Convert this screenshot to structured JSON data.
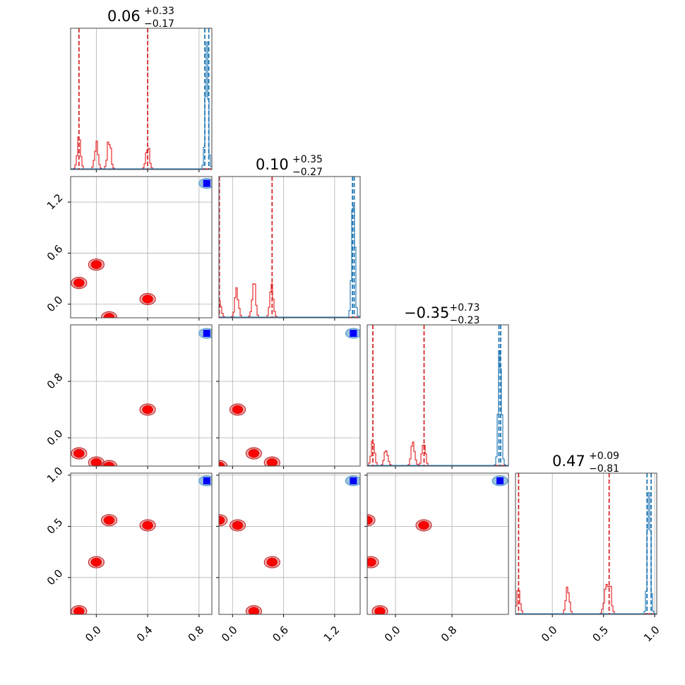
{
  "chart_data": {
    "type": "corner",
    "n_params": 4,
    "colors": {
      "red": "#e41a1c",
      "red_marker": "#ff0000",
      "blue": "#1f77b4",
      "blue_marker": "#0000ff",
      "red_quantile": "#d62728"
    },
    "ranges": [
      [
        -0.2,
        0.9
      ],
      [
        -0.16,
        1.5
      ],
      [
        -0.4,
        1.6
      ],
      [
        -0.36,
        1.02
      ]
    ],
    "titles": [
      {
        "value": "0.06",
        "plus": "+0.33",
        "minus": "−0.17"
      },
      {
        "value": "0.10",
        "plus": "+0.35",
        "minus": "−0.27"
      },
      {
        "value": "−0.35",
        "plus": "+0.73",
        "minus": "−0.23"
      },
      {
        "value": "0.47",
        "plus": "+0.09",
        "minus": "−0.81"
      }
    ],
    "ticks": [
      {
        "values": [
          0.0,
          0.4,
          0.8
        ],
        "labels": [
          "0.0",
          "0.4",
          "0.8"
        ]
      },
      {
        "values": [
          0.0,
          0.6,
          1.2
        ],
        "labels": [
          "0.0",
          "0.6",
          "1.2"
        ]
      },
      {
        "values": [
          0.0,
          0.8
        ],
        "labels": [
          "0.0",
          "0.8"
        ]
      },
      {
        "values": [
          0.0,
          0.5,
          1.0
        ],
        "labels": [
          "0.0",
          "0.5",
          "1.0"
        ]
      }
    ],
    "red_quantiles": [
      [
        -0.135,
        0.4
      ],
      [
        -0.155,
        0.465
      ],
      [
        -0.32,
        0.405
      ],
      [
        -0.33,
        0.555
      ]
    ],
    "blue_quantiles": [
      [
        0.845,
        0.876
      ],
      [
        1.41,
        1.43
      ],
      [
        1.465,
        1.49
      ],
      [
        0.925,
        0.965
      ]
    ],
    "red_hist_peaks": [
      [
        [
          -0.135,
          0.25
        ],
        [
          0.0,
          0.2
        ],
        [
          0.1,
          0.25
        ],
        [
          0.4,
          0.2
        ]
      ],
      [
        [
          -0.155,
          0.18
        ],
        [
          0.05,
          0.22
        ],
        [
          0.25,
          0.3
        ],
        [
          0.46,
          0.25
        ]
      ],
      [
        [
          -0.32,
          0.19
        ],
        [
          -0.13,
          0.15
        ],
        [
          0.25,
          0.2
        ],
        [
          0.4,
          0.2
        ]
      ],
      [
        [
          -0.33,
          0.2
        ],
        [
          0.15,
          0.22
        ],
        [
          0.52,
          0.2
        ],
        [
          0.56,
          0.25
        ]
      ]
    ],
    "blue_hist_peak": [
      0.86,
      1.42,
      1.48,
      0.945
    ],
    "red_points": [
      [
        -0.135,
        0.25,
        -0.22,
        -0.33
      ],
      [
        0.0,
        0.465,
        -0.35,
        0.15
      ],
      [
        0.1,
        -0.155,
        -0.4,
        0.56
      ],
      [
        0.4,
        0.06,
        0.4,
        0.51
      ]
    ],
    "blue_point": [
      0.86,
      1.42,
      1.48,
      0.945
    ]
  }
}
